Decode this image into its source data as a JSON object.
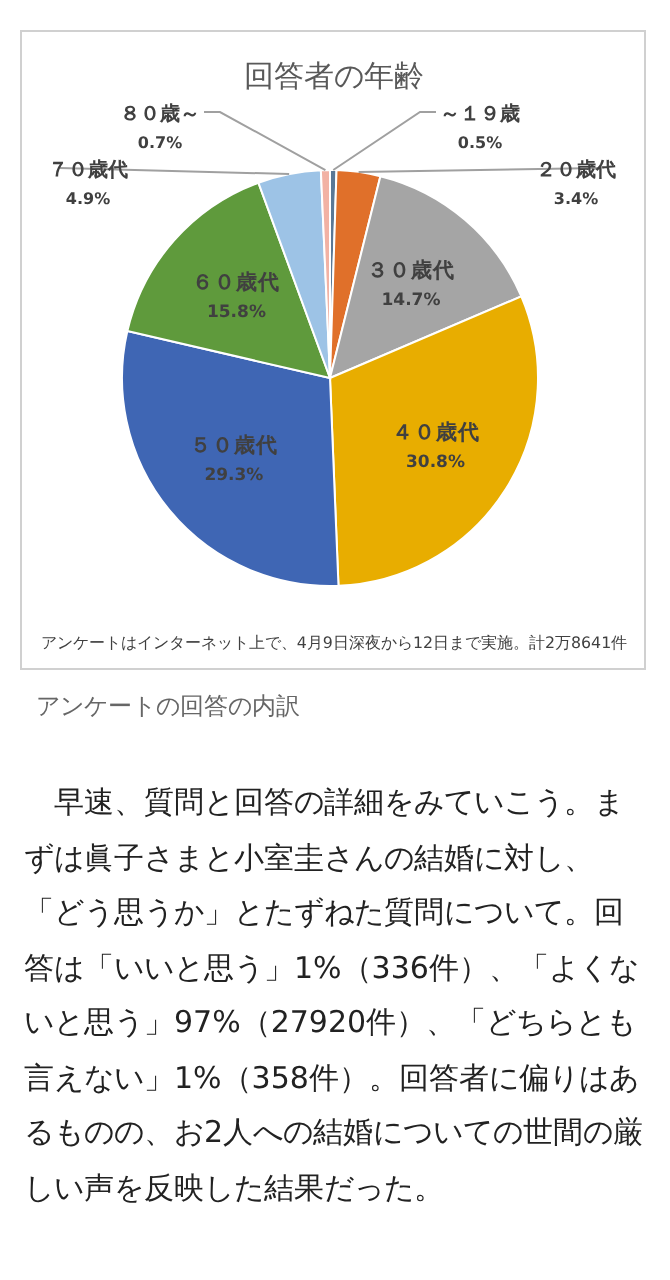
{
  "chart_data": {
    "type": "pie",
    "title": "回答者の年齢",
    "categories": [
      "～１９歳",
      "２０歳代",
      "３０歳代",
      "４０歳代",
      "５０歳代",
      "６０歳代",
      "７０歳代",
      "８０歳～"
    ],
    "values": [
      0.5,
      3.4,
      14.7,
      30.8,
      29.3,
      15.8,
      4.9,
      0.7
    ],
    "value_labels": [
      "0.5%",
      "3.4%",
      "14.7%",
      "30.8%",
      "29.3%",
      "15.8%",
      "4.9%",
      "0.7%"
    ],
    "colors": [
      "#5a7896",
      "#e0702a",
      "#a5a5a5",
      "#e8ad00",
      "#3f66b4",
      "#5f9a3c",
      "#9dc3e6",
      "#f2b2a4"
    ],
    "annotations": [
      "アンケートはインターネット上で、4月9日深夜から12日まで実施。計2万8641件",
      "アンケートの回答の内訳",
      "早速、質問と回答の詳細をみていこう。まずは眞子さまと小室圭さんの結婚に対し、「どう思うか」とたずねた質問について。回答は「いいと思う」1%（336件）、「よくないと思う」97%（27920件）、「どちらとも言えない」1%（358件）。回答者に偏りはあるものの、お2人への結婚についての世間の厳しい声を反映した結果だった。"
    ]
  }
}
